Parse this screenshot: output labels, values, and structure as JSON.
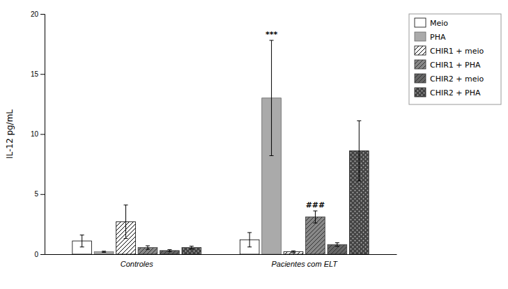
{
  "chart_data": {
    "type": "bar",
    "categories": [
      "Controles",
      "Pacientes com ELT"
    ],
    "series": [
      {
        "name": "Meio",
        "color": "white",
        "values": [
          1.1,
          1.2
        ],
        "errors": [
          0.5,
          0.6
        ]
      },
      {
        "name": "PHA",
        "color": "#aaaaaa",
        "values": [
          0.2,
          13.0
        ],
        "errors": [
          0.05,
          4.8
        ]
      },
      {
        "name": "CHIR1 + meio",
        "color": "white",
        "values": [
          2.7,
          0.2
        ],
        "errors": [
          1.4,
          0.08
        ]
      },
      {
        "name": "CHIR1 + PHA",
        "color": "#888888",
        "values": [
          0.55,
          3.1
        ],
        "errors": [
          0.15,
          0.5
        ]
      },
      {
        "name": "CHIR2 + meio",
        "color": "#666666",
        "values": [
          0.3,
          0.8
        ],
        "errors": [
          0.08,
          0.15
        ]
      },
      {
        "name": "CHIR2 + PHA",
        "color": "#444444",
        "values": [
          0.55,
          8.6
        ],
        "errors": [
          0.12,
          2.5
        ]
      }
    ],
    "annotations": [
      {
        "text": "***",
        "series": "PHA",
        "category": "Pacientes com ELT"
      },
      {
        "text": "###",
        "series": "CHIR1 + PHA",
        "category": "Pacientes com ELT"
      }
    ],
    "ylabel": "IL-12 pg/mL",
    "ylim": [
      0,
      20
    ],
    "yticks": [
      0,
      5,
      10,
      15,
      20
    ],
    "grid": false,
    "legend": "upper right"
  }
}
